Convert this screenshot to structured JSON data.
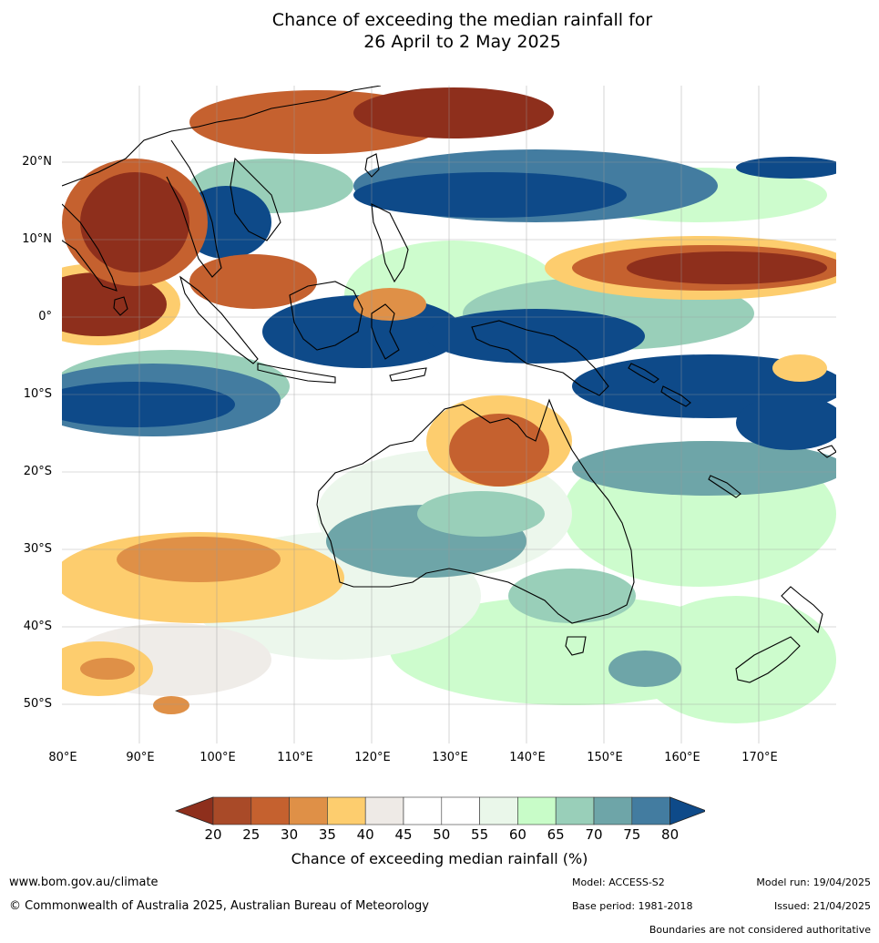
{
  "title": {
    "line1": "Chance of exceeding the median rainfall for",
    "line2": "26 April to 2 May 2025"
  },
  "map": {
    "lat_labels": [
      "20°N",
      "10°N",
      "0°",
      "10°S",
      "20°S",
      "30°S",
      "40°S",
      "50°S"
    ],
    "lon_labels": [
      "80°E",
      "90°E",
      "100°E",
      "110°E",
      "120°E",
      "130°E",
      "140°E",
      "150°E",
      "160°E",
      "170°E"
    ],
    "region": "Australia, Indian Ocean and western Pacific"
  },
  "legend": {
    "ticks": [
      "20",
      "25",
      "30",
      "35",
      "40",
      "45",
      "50",
      "55",
      "60",
      "65",
      "70",
      "75",
      "80"
    ],
    "colors": [
      "#8e2f1c",
      "#a94a28",
      "#c5612f",
      "#df9047",
      "#fdcd6e",
      "#eeeae6",
      "#ffffff",
      "#ffffff",
      "#eaf7ea",
      "#c8fcc8",
      "#99cfb9",
      "#6ea5a8",
      "#437ca0",
      "#0e4a89"
    ],
    "label": "Chance of exceeding median rainfall (%)"
  },
  "footer": {
    "website": "www.bom.gov.au/climate",
    "copyright": "© Commonwealth of Australia 2025, Australian Bureau of Meteorology",
    "model": "Model: ACCESS-S2",
    "base_period": "Base period: 1981-2018",
    "model_run": "Model run: 19/04/2025",
    "issued": "Issued: 21/04/2025",
    "disclaimer": "Boundaries are not considered authoritative"
  }
}
